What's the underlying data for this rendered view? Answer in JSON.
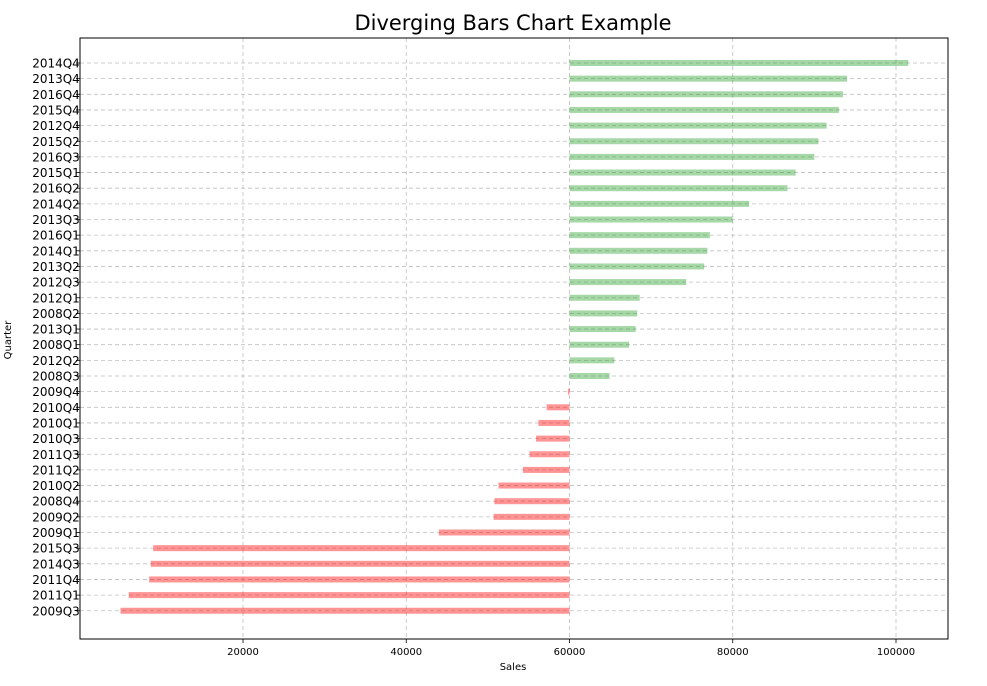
{
  "chart_data": {
    "type": "bar",
    "orientation": "horizontal",
    "title": "Diverging Bars Chart Example",
    "xlabel": "Sales",
    "ylabel": "Quarter",
    "baseline": 60000,
    "xlim": [
      0,
      106500
    ],
    "xticks": [
      20000,
      40000,
      60000,
      80000,
      100000
    ],
    "grid": true,
    "colors": {
      "above": "#2ca02c",
      "below": "#ff0000"
    },
    "categories": [
      "2014Q4",
      "2013Q4",
      "2016Q4",
      "2015Q4",
      "2012Q4",
      "2015Q2",
      "2016Q3",
      "2015Q1",
      "2016Q2",
      "2014Q2",
      "2013Q3",
      "2016Q1",
      "2014Q1",
      "2013Q2",
      "2012Q3",
      "2012Q1",
      "2008Q2",
      "2013Q1",
      "2008Q1",
      "2012Q2",
      "2008Q3",
      "2009Q4",
      "2010Q4",
      "2010Q1",
      "2010Q3",
      "2011Q3",
      "2011Q2",
      "2010Q2",
      "2008Q4",
      "2009Q2",
      "2009Q1",
      "2015Q3",
      "2014Q3",
      "2011Q4",
      "2011Q1",
      "2009Q3"
    ],
    "values": [
      101500,
      94000,
      93500,
      93000,
      91500,
      90500,
      90000,
      87700,
      86700,
      82000,
      80000,
      77200,
      76900,
      76500,
      74300,
      68600,
      68300,
      68100,
      67300,
      65500,
      64900,
      59800,
      57200,
      56200,
      55900,
      55100,
      54300,
      51300,
      50800,
      50700,
      44000,
      9000,
      8700,
      8500,
      6000,
      5000
    ]
  }
}
